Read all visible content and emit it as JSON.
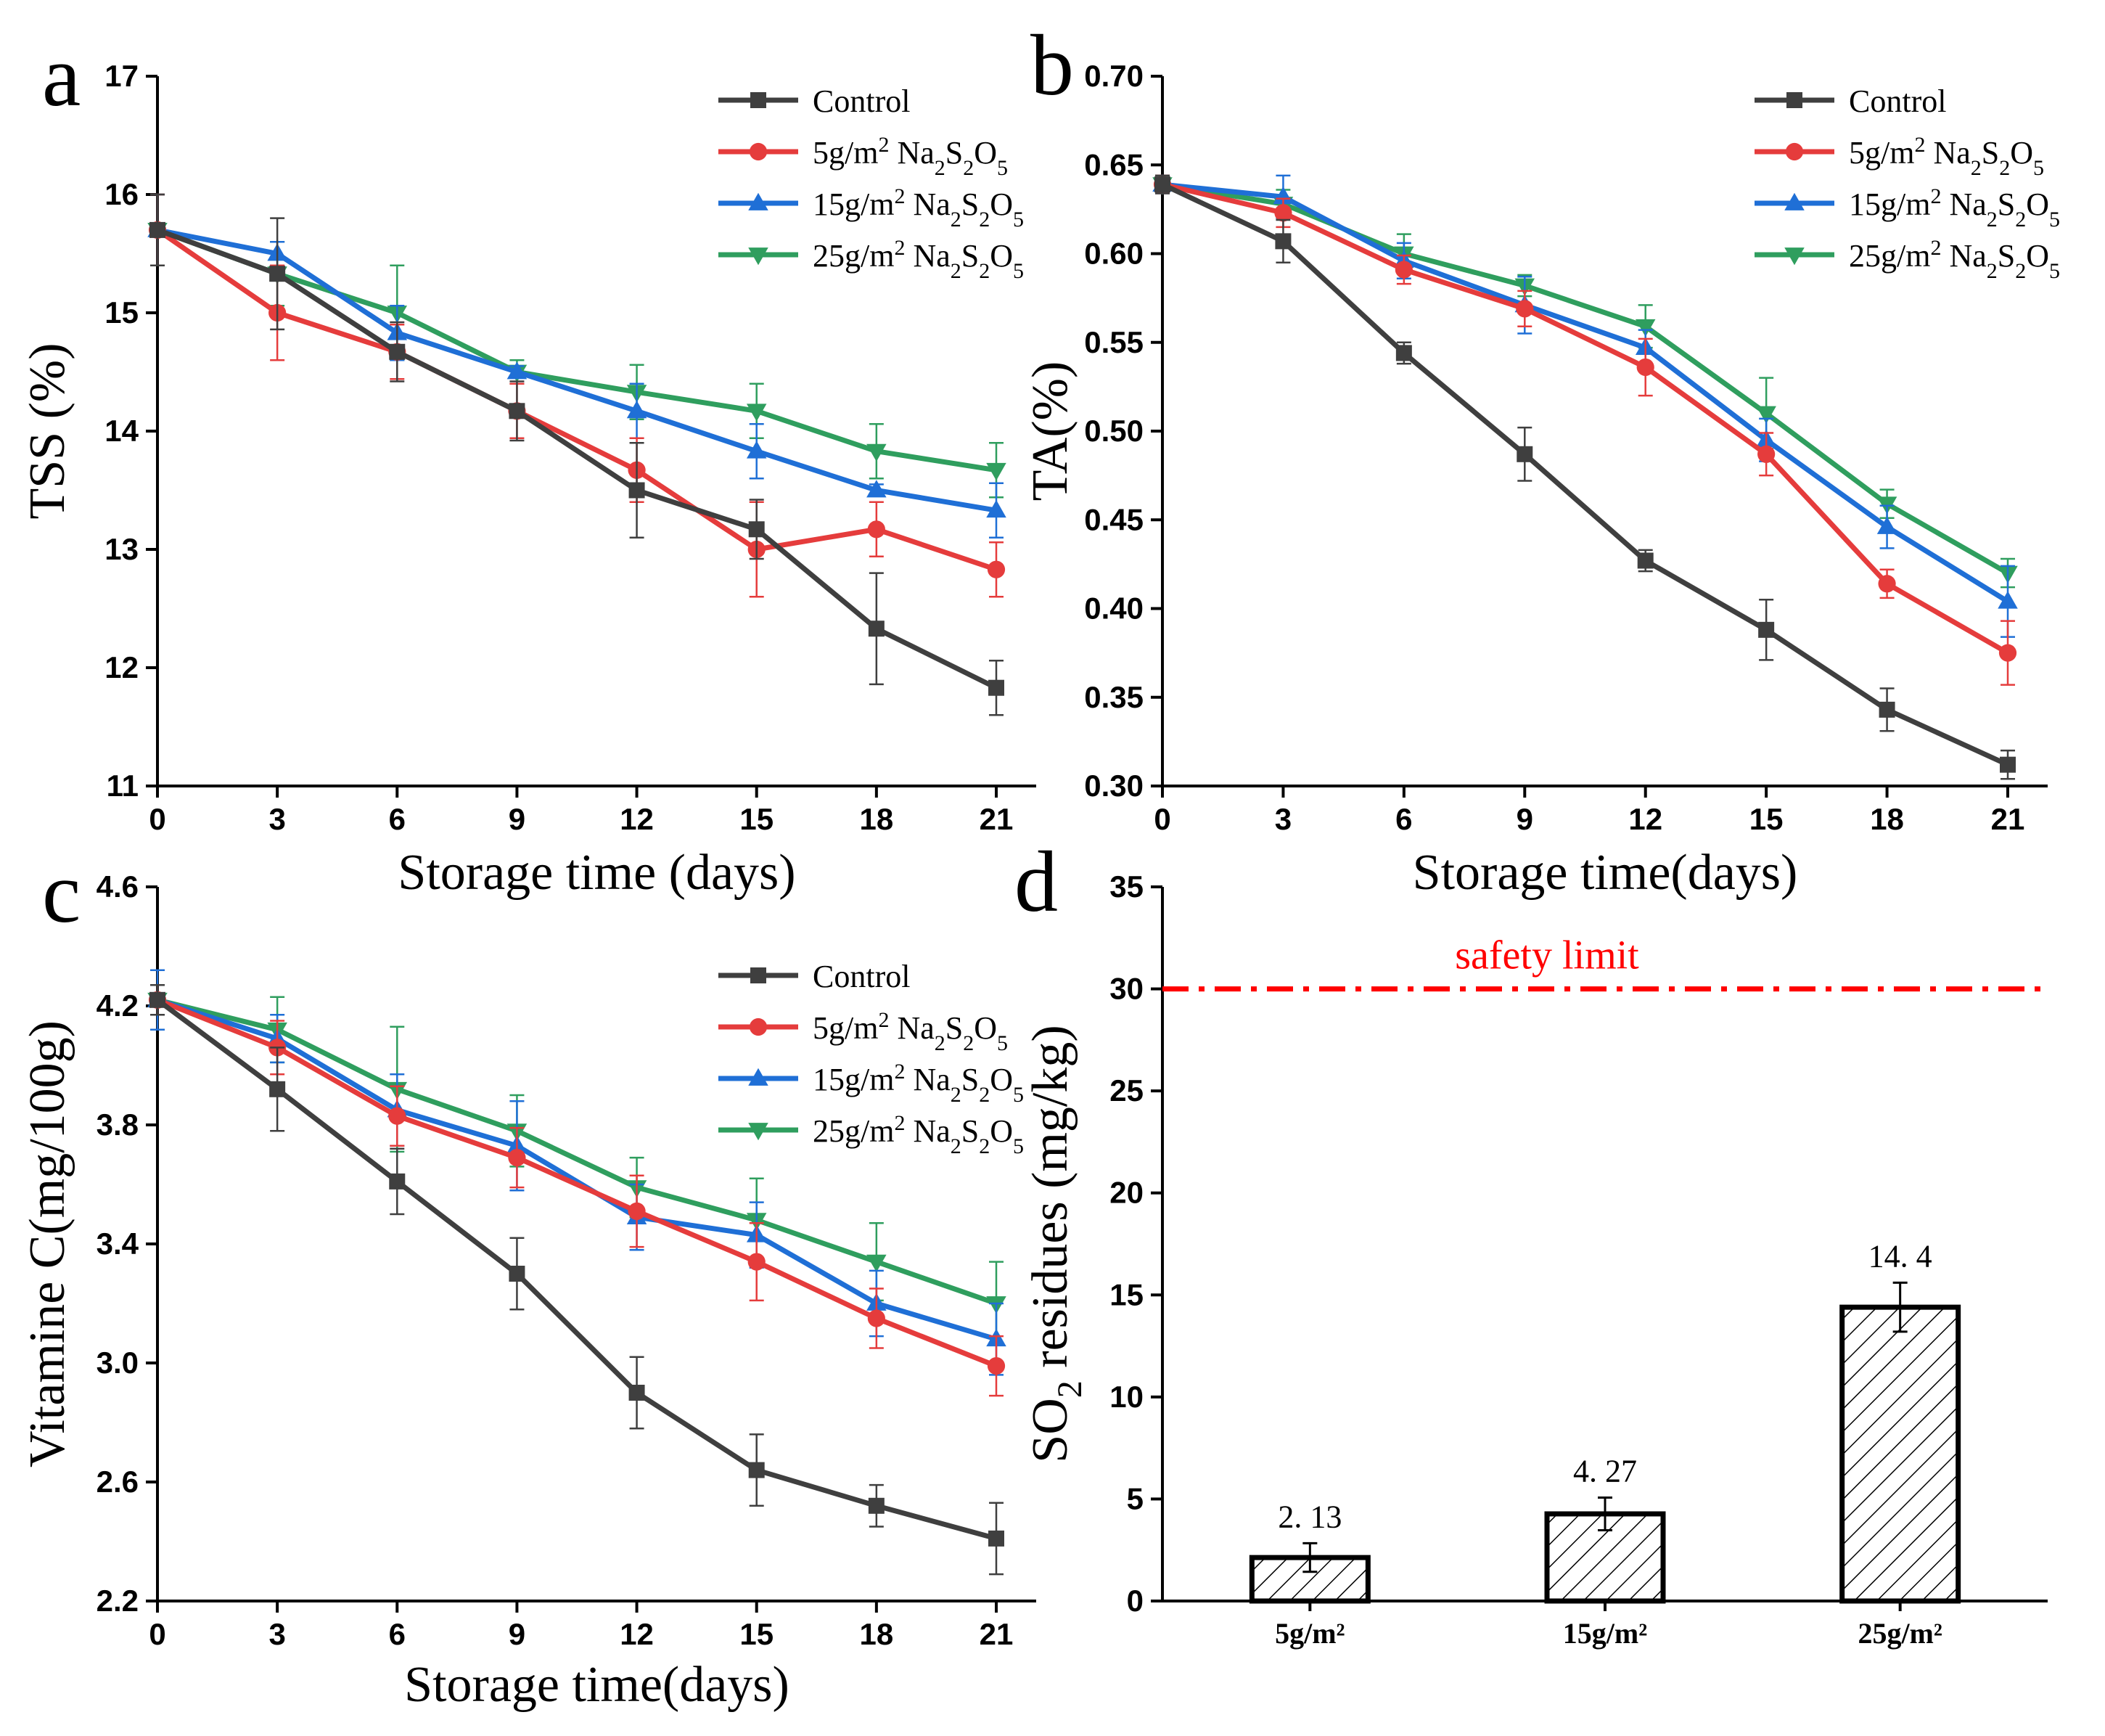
{
  "chart_data": [
    {
      "panel_label": "a",
      "type": "line",
      "title": "",
      "xlabel": "Storage time (days)",
      "ylabel": "TSS (%)",
      "x": [
        0,
        3,
        6,
        9,
        12,
        15,
        18,
        21
      ],
      "x_ticks": [
        "0",
        "3",
        "6",
        "9",
        "12",
        "15",
        "18",
        "21"
      ],
      "ylim": [
        11,
        17
      ],
      "y_ticks": [
        "11",
        "12",
        "13",
        "14",
        "15",
        "16",
        "17"
      ],
      "legend_position": "top-right",
      "series": [
        {
          "name": "Control",
          "legend_parts": [
            "Control"
          ],
          "color": "#3f3f3f",
          "marker": "square",
          "values": [
            15.7,
            15.33,
            14.67,
            14.17,
            13.5,
            13.17,
            12.33,
            11.83
          ],
          "errors": [
            0.3,
            0.47,
            0.25,
            0.25,
            0.4,
            0.25,
            0.47,
            0.23
          ]
        },
        {
          "name": "5g/m2 Na2S2O5",
          "legend_parts": [
            "5g/m",
            "2",
            " Na",
            "2",
            "S",
            "2",
            "O",
            "5"
          ],
          "color": "#e53c3c",
          "marker": "circle",
          "values": [
            15.7,
            15.0,
            14.67,
            14.17,
            13.67,
            13.0,
            13.17,
            12.83
          ],
          "errors": [
            0.3,
            0.4,
            0.23,
            0.23,
            0.27,
            0.4,
            0.23,
            0.23
          ]
        },
        {
          "name": "15g/m2 Na2S2O5",
          "legend_parts": [
            "15g/m",
            "2",
            " Na",
            "2",
            "S",
            "2",
            "O",
            "5"
          ],
          "color": "#1f6fd6",
          "marker": "triangle-up",
          "values": [
            15.7,
            15.5,
            14.83,
            14.5,
            14.17,
            13.83,
            13.5,
            13.33
          ],
          "errors": [
            0.3,
            0.1,
            0.23,
            0.05,
            0.23,
            0.23,
            0.05,
            0.23
          ]
        },
        {
          "name": "25g/m2 Na2S2O5",
          "legend_parts": [
            "25g/m",
            "2",
            " Na",
            "2",
            "S",
            "2",
            "O",
            "5"
          ],
          "color": "#2f9e5e",
          "marker": "triangle-down",
          "values": [
            15.7,
            15.33,
            15.0,
            14.5,
            14.33,
            14.17,
            13.83,
            13.67
          ],
          "errors": [
            0.3,
            0.27,
            0.4,
            0.1,
            0.23,
            0.23,
            0.23,
            0.23
          ]
        }
      ]
    },
    {
      "panel_label": "b",
      "type": "line",
      "title": "",
      "xlabel": "Storage time(days)",
      "ylabel": "TA(%)",
      "x": [
        0,
        3,
        6,
        9,
        12,
        15,
        18,
        21
      ],
      "x_ticks": [
        "0",
        "3",
        "6",
        "9",
        "12",
        "15",
        "18",
        "21"
      ],
      "ylim": [
        0.3,
        0.7
      ],
      "y_ticks": [
        "0.30",
        "0.35",
        "0.40",
        "0.45",
        "0.50",
        "0.55",
        "0.60",
        "0.65",
        "0.70"
      ],
      "legend_position": "top-right",
      "series": [
        {
          "name": "Control",
          "legend_parts": [
            "Control"
          ],
          "color": "#3f3f3f",
          "marker": "square",
          "values": [
            0.639,
            0.607,
            0.544,
            0.487,
            0.427,
            0.388,
            0.343,
            0.312
          ],
          "errors": [
            0.005,
            0.012,
            0.006,
            0.015,
            0.006,
            0.017,
            0.012,
            0.008
          ]
        },
        {
          "name": "5g/m2 Na2S2O5",
          "legend_parts": [
            "5g/m",
            "2",
            " Na",
            "2",
            "S",
            "2",
            "O",
            "5"
          ],
          "color": "#e53c3c",
          "marker": "circle",
          "values": [
            0.639,
            0.623,
            0.591,
            0.569,
            0.536,
            0.487,
            0.414,
            0.375
          ],
          "errors": [
            0.005,
            0.008,
            0.008,
            0.01,
            0.016,
            0.012,
            0.008,
            0.018
          ]
        },
        {
          "name": "15g/m2 Na2S2O5",
          "legend_parts": [
            "15g/m",
            "2",
            " Na",
            "2",
            "S",
            "2",
            "O",
            "5"
          ],
          "color": "#1f6fd6",
          "marker": "triangle-up",
          "values": [
            0.639,
            0.632,
            0.596,
            0.571,
            0.547,
            0.495,
            0.446,
            0.404
          ],
          "errors": [
            0.005,
            0.012,
            0.01,
            0.016,
            0.01,
            0.012,
            0.012,
            0.02
          ]
        },
        {
          "name": "25g/m2 Na2S2O5",
          "legend_parts": [
            "25g/m",
            "2",
            " Na",
            "2",
            "S",
            "2",
            "O",
            "5"
          ],
          "color": "#2f9e5e",
          "marker": "triangle-down",
          "values": [
            0.639,
            0.628,
            0.6,
            0.582,
            0.559,
            0.51,
            0.459,
            0.42
          ],
          "errors": [
            0.005,
            0.008,
            0.011,
            0.006,
            0.012,
            0.02,
            0.008,
            0.008
          ]
        }
      ]
    },
    {
      "panel_label": "c",
      "type": "line",
      "title": "",
      "xlabel": "Storage time(days)",
      "ylabel": "Vitamine C(mg/100g)",
      "x": [
        0,
        3,
        6,
        9,
        12,
        15,
        18,
        21
      ],
      "x_ticks": [
        "0",
        "3",
        "6",
        "9",
        "12",
        "15",
        "18",
        "21"
      ],
      "ylim": [
        2.2,
        4.6
      ],
      "y_ticks": [
        "2.2",
        "2.6",
        "3.0",
        "3.4",
        "3.8",
        "4.2",
        "4.6"
      ],
      "legend_position": "top-right",
      "series": [
        {
          "name": "Control",
          "legend_parts": [
            "Control"
          ],
          "color": "#3f3f3f",
          "marker": "square",
          "values": [
            4.22,
            3.92,
            3.61,
            3.3,
            2.9,
            2.64,
            2.52,
            2.41
          ],
          "errors": [
            0.05,
            0.14,
            0.11,
            0.12,
            0.12,
            0.12,
            0.07,
            0.12
          ]
        },
        {
          "name": "5g/m2 Na2S2O5",
          "legend_parts": [
            "5g/m",
            "2",
            " Na",
            "2",
            "S",
            "2",
            "O",
            "5"
          ],
          "color": "#e53c3c",
          "marker": "circle",
          "values": [
            4.22,
            4.06,
            3.83,
            3.69,
            3.51,
            3.34,
            3.15,
            2.99
          ],
          "errors": [
            0.05,
            0.09,
            0.1,
            0.1,
            0.12,
            0.13,
            0.1,
            0.1
          ]
        },
        {
          "name": "15g/m2 Na2S2O5",
          "legend_parts": [
            "15g/m",
            "2",
            " Na",
            "2",
            "S",
            "2",
            "O",
            "5"
          ],
          "color": "#1f6fd6",
          "marker": "triangle-up",
          "values": [
            4.22,
            4.09,
            3.85,
            3.73,
            3.49,
            3.43,
            3.2,
            3.08
          ],
          "errors": [
            0.1,
            0.08,
            0.12,
            0.15,
            0.11,
            0.11,
            0.11,
            0.12
          ]
        },
        {
          "name": "25g/m2 Na2S2O5",
          "legend_parts": [
            "25g/m",
            "2",
            " Na",
            "2",
            "S",
            "2",
            "O",
            "5"
          ],
          "color": "#2f9e5e",
          "marker": "triangle-down",
          "values": [
            4.22,
            4.12,
            3.92,
            3.78,
            3.59,
            3.48,
            3.34,
            3.2
          ],
          "errors": [
            0.05,
            0.11,
            0.21,
            0.12,
            0.1,
            0.14,
            0.13,
            0.14
          ]
        }
      ]
    },
    {
      "panel_label": "d",
      "type": "bar",
      "title": "",
      "xlabel": "",
      "ylabel_parts": [
        "SO",
        "2",
        " residues (mg/kg)"
      ],
      "categories": [
        "5g/m²",
        "15g/m²",
        "25g/m²"
      ],
      "values": [
        2.13,
        4.27,
        14.4
      ],
      "errors": [
        0.7,
        0.8,
        1.2
      ],
      "data_labels": [
        "2. 13",
        "4. 27",
        "14. 4"
      ],
      "ylim": [
        0,
        35
      ],
      "y_ticks": [
        "0",
        "5",
        "10",
        "15",
        "20",
        "25",
        "30",
        "35"
      ],
      "bar_fill": "hatched",
      "reference_line": {
        "value": 30,
        "label": "safety limit",
        "color": "#ff0000",
        "style": "dash-dot"
      }
    }
  ]
}
